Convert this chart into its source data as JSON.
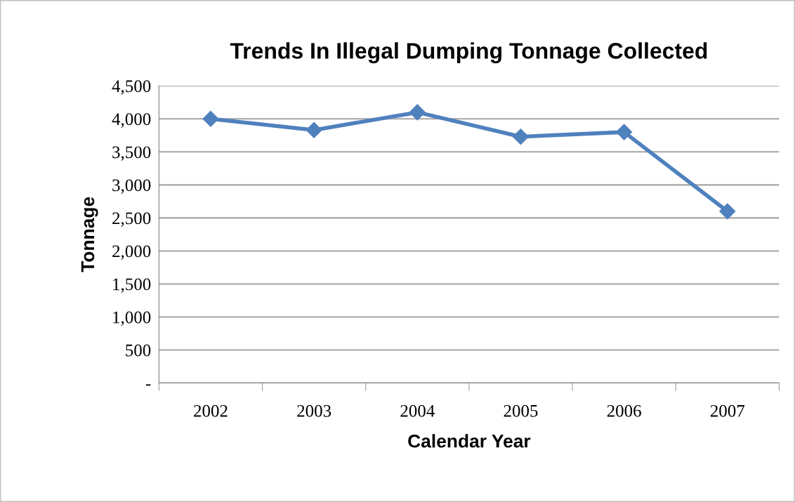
{
  "chart_data": {
    "type": "line",
    "title": "Trends In Illegal Dumping Tonnage Collected",
    "xlabel": "Calendar Year",
    "ylabel": "Tonnage",
    "categories": [
      "2002",
      "2003",
      "2004",
      "2005",
      "2006",
      "2007"
    ],
    "series": [
      {
        "color": "#4f81bd",
        "values": [
          4000,
          3830,
          4100,
          3730,
          3800,
          2600
        ]
      }
    ],
    "ylim": [
      0,
      4500
    ],
    "yticks": [
      {
        "value": 0,
        "label": "-"
      },
      {
        "value": 500,
        "label": "500"
      },
      {
        "value": 1000,
        "label": "1,000"
      },
      {
        "value": 1500,
        "label": "1,500"
      },
      {
        "value": 2000,
        "label": "2,000"
      },
      {
        "value": 2500,
        "label": "2,500"
      },
      {
        "value": 3000,
        "label": "3,000"
      },
      {
        "value": 3500,
        "label": "3,500"
      },
      {
        "value": 4000,
        "label": "4,000"
      },
      {
        "value": 4500,
        "label": "4,500"
      }
    ],
    "grid": "y",
    "marker": "diamond",
    "line_style": "solid",
    "legend": false
  }
}
